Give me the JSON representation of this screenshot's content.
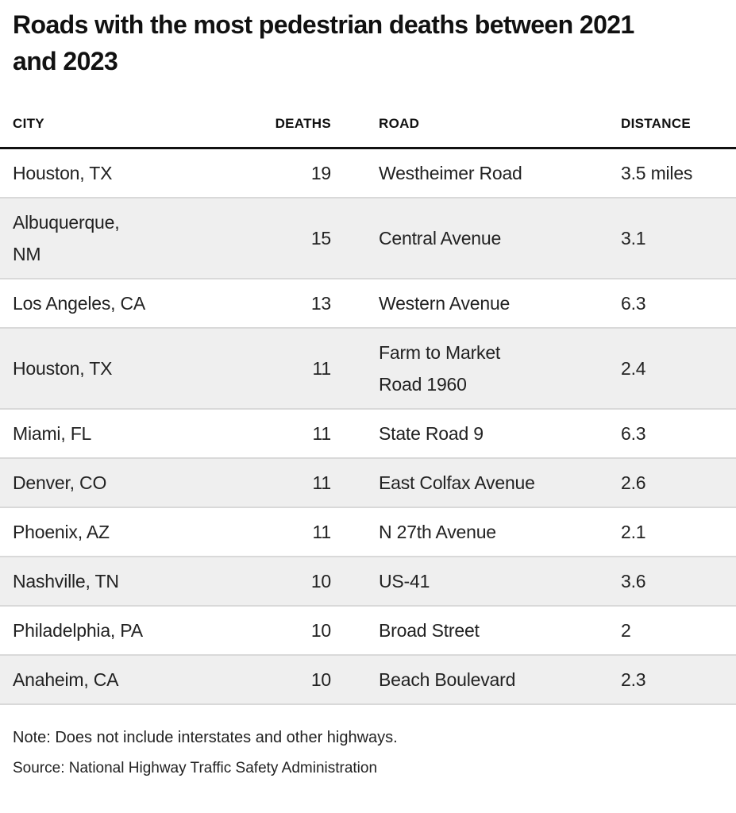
{
  "title": "Roads with the most pedestrian deaths between 2021\nand 2023",
  "note": "Note: Does not include interstates and other highways.",
  "source": "Source: National Highway Traffic Safety Administration",
  "colors": {
    "background": "#ffffff",
    "title_text": "#111111",
    "body_text": "#222222",
    "header_rule": "#111111",
    "row_divider": "#d9d9d9",
    "row_stripe": "#efefef"
  },
  "chart_data": {
    "type": "table",
    "title": "Roads with the most pedestrian deaths between 2021 and 2023",
    "layout_hints": {
      "striping": "even rows shaded light gray",
      "deaths_column_alignment": "right",
      "distance_unit_shown_only_in_first_row": true
    },
    "columns": [
      {
        "key": "city",
        "label": "CITY",
        "align": "left"
      },
      {
        "key": "deaths",
        "label": "DEATHS",
        "align": "right"
      },
      {
        "key": "road",
        "label": "ROAD",
        "align": "left"
      },
      {
        "key": "distance",
        "label": "DISTANCE",
        "align": "left"
      }
    ],
    "rows": [
      {
        "city": "Houston, TX",
        "deaths": 19,
        "road": "Westheimer Road",
        "distance": "3.5 miles"
      },
      {
        "city": "Albuquerque,\nNM",
        "deaths": 15,
        "road": "Central Avenue",
        "distance": "3.1"
      },
      {
        "city": "Los Angeles, CA",
        "deaths": 13,
        "road": "Western Avenue",
        "distance": "6.3"
      },
      {
        "city": "Houston, TX",
        "deaths": 11,
        "road": "Farm to Market\nRoad 1960",
        "distance": "2.4"
      },
      {
        "city": "Miami, FL",
        "deaths": 11,
        "road": "State Road 9",
        "distance": "6.3"
      },
      {
        "city": "Denver, CO",
        "deaths": 11,
        "road": "East Colfax Avenue",
        "distance": "2.6"
      },
      {
        "city": "Phoenix, AZ",
        "deaths": 11,
        "road": "N 27th Avenue",
        "distance": "2.1"
      },
      {
        "city": "Nashville, TN",
        "deaths": 10,
        "road": "US-41",
        "distance": "3.6"
      },
      {
        "city": "Philadelphia, PA",
        "deaths": 10,
        "road": "Broad Street",
        "distance": "2"
      },
      {
        "city": "Anaheim, CA",
        "deaths": 10,
        "road": "Beach Boulevard",
        "distance": "2.3"
      }
    ]
  }
}
